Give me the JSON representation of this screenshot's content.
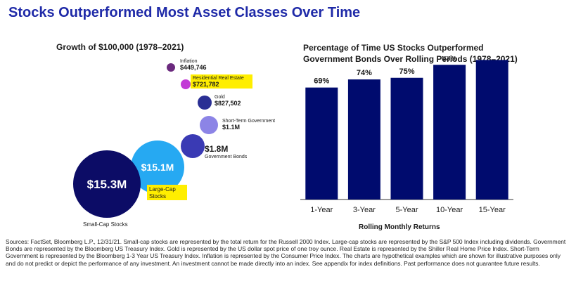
{
  "title": "Stocks Outperformed Most Asset Classes Over Time",
  "colors": {
    "title_blue": "#1f2aa8",
    "bar_navy": "#000b6e",
    "highlight": "#ffee00"
  },
  "chart_data": [
    {
      "type": "bubble",
      "title": "Growth of $100,000 (1978–2021)",
      "series": [
        {
          "name": "Inflation",
          "value": 449746,
          "value_label": "$449,746",
          "color": "#6b2a7e",
          "highlighted": false
        },
        {
          "name": "Residential Real Estate",
          "value": 721782,
          "value_label": "$721,782",
          "color": "#c23bd6",
          "highlighted": true
        },
        {
          "name": "Gold",
          "value": 827502,
          "value_label": "$827,502",
          "color": "#2a2f94",
          "highlighted": false
        },
        {
          "name": "Short-Term Government",
          "value": 1100000,
          "value_label": "$1.1M",
          "color": "#8c84e6",
          "highlighted": false
        },
        {
          "name": "Government Bonds",
          "value": 1800000,
          "value_label": "$1.8M",
          "color": "#3a3ab4",
          "highlighted": false
        },
        {
          "name": "Large-Cap Stocks",
          "value": 15100000,
          "value_label": "$15.1M",
          "color": "#26a9f2",
          "highlighted": true
        },
        {
          "name": "Small-Cap Stocks",
          "value": 15300000,
          "value_label": "$15.3M",
          "color": "#0c0c66",
          "highlighted": false
        }
      ]
    },
    {
      "type": "bar",
      "title_lines": [
        "Percentage of Time US Stocks Outperformed",
        "Government Bonds Over Rolling Periods (1978–2021)"
      ],
      "xlabel": "Rolling Monthly Returns",
      "ylabel": "",
      "categories": [
        "1-Year",
        "3-Year",
        "5-Year",
        "10-Year",
        "15-Year"
      ],
      "values": [
        69,
        74,
        75,
        83,
        86
      ],
      "value_labels": [
        "69%",
        "74%",
        "75%",
        "83%",
        "86%"
      ],
      "ylim": [
        0,
        100
      ],
      "grid": false
    }
  ],
  "sources": "Sources: FactSet, Bloomberg L.P., 12/31/21. Small-cap stocks are represented by the total return for the Russell 2000 Index. Large-cap stocks are represented by the S&P 500 Index including dividends. Government Bonds are represented by the Bloomberg US Treasury Index. Gold is represented by the US dollar spot price of one troy ounce. Real Estate is represented by the Shiller Real Home Price Index. Short-Term Government is represented by the Bloomberg 1-3 Year US Treasury Index. Inflation is represented by the Consumer Price Index. The charts are hypothetical examples which are shown for illustrative purposes only and do not predict or depict the performance of any investment. An investment cannot be made directly into an index. See appendix for index definitions. Past performance does not guarantee future results."
}
